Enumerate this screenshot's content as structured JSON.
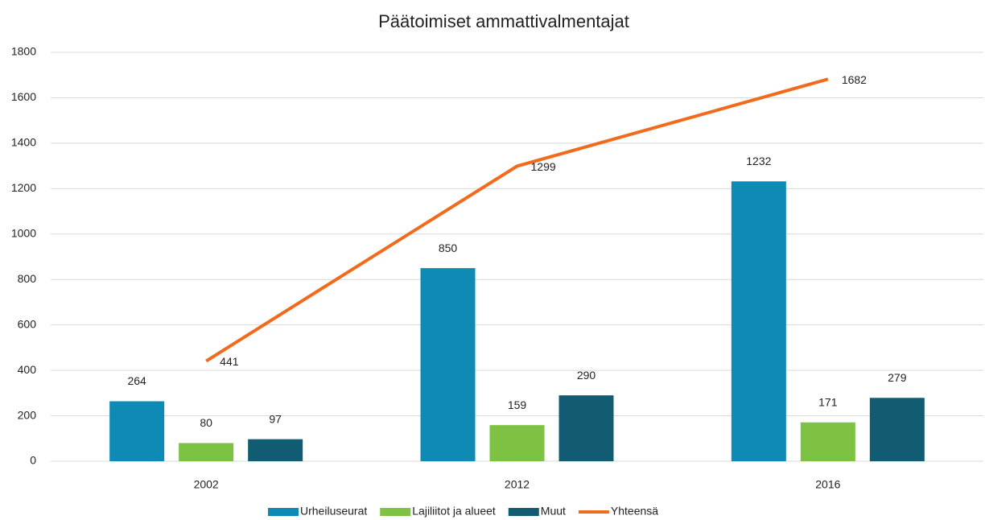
{
  "chart_data": {
    "type": "bar",
    "title": "Päätoimiset ammattivalmentajat",
    "categories": [
      "2002",
      "2012",
      "2016"
    ],
    "series": [
      {
        "name": "Urheiluseurat",
        "color": "#0e8ab5",
        "values": [
          264,
          850,
          1232
        ]
      },
      {
        "name": "Lajiliitot ja alueet",
        "color": "#7dc242",
        "values": [
          80,
          159,
          171
        ]
      },
      {
        "name": "Muut",
        "color": "#115c73",
        "values": [
          97,
          290,
          279
        ]
      },
      {
        "name": "Yhteensä",
        "color": "#f26b1d",
        "type": "line",
        "values": [
          441,
          1299,
          1682
        ]
      }
    ],
    "ylim": [
      0,
      1800
    ],
    "yticks": [
      0,
      200,
      400,
      600,
      800,
      1000,
      1200,
      1400,
      1600,
      1800
    ],
    "grid": true,
    "legend": "bottom"
  }
}
